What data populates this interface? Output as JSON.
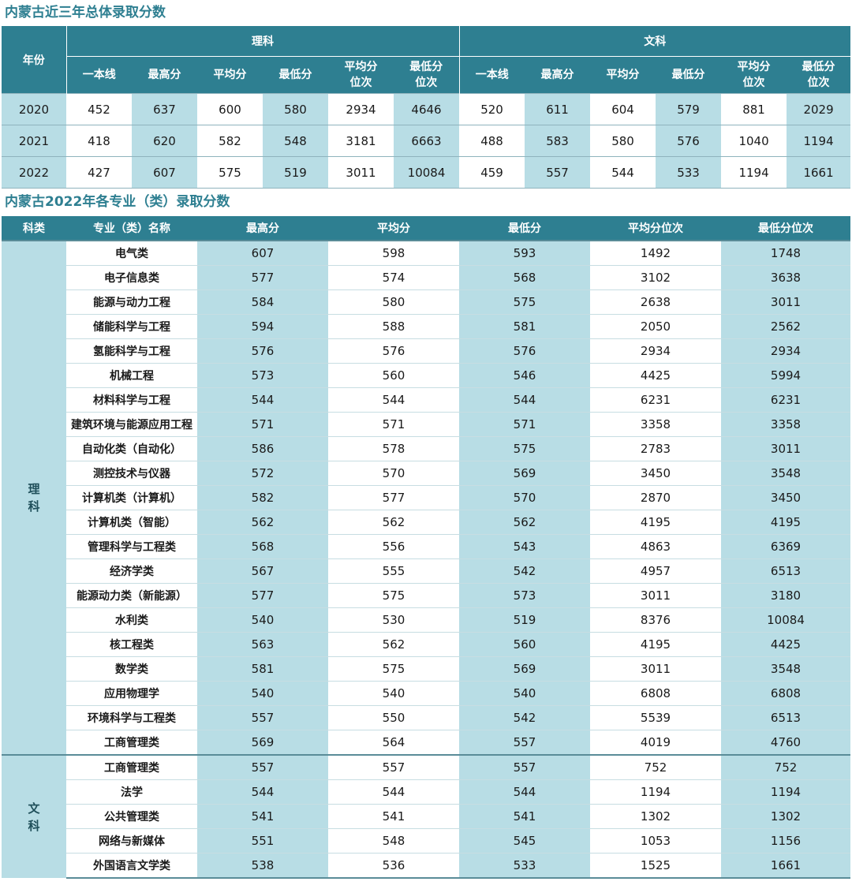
{
  "table1": {
    "title": "内蒙古近三年总体录取分数",
    "year_header": "年份",
    "groups": [
      "理科",
      "文科"
    ],
    "sub_headers": [
      "一本线",
      "最高分",
      "平均分",
      "最低分",
      "平均分\n位次",
      "最低分\n位次"
    ],
    "rows": [
      {
        "year": "2020",
        "science": [
          "452",
          "637",
          "600",
          "580",
          "2934",
          "4646"
        ],
        "arts": [
          "520",
          "611",
          "604",
          "579",
          "881",
          "2029"
        ]
      },
      {
        "year": "2021",
        "science": [
          "418",
          "620",
          "582",
          "548",
          "3181",
          "6663"
        ],
        "arts": [
          "488",
          "583",
          "580",
          "576",
          "1040",
          "1194"
        ]
      },
      {
        "year": "2022",
        "science": [
          "427",
          "607",
          "575",
          "519",
          "3011",
          "10084"
        ],
        "arts": [
          "459",
          "557",
          "544",
          "533",
          "1194",
          "1661"
        ]
      }
    ]
  },
  "table2": {
    "title": "内蒙古2022年各专业（类）录取分数",
    "headers": [
      "科类",
      "专业（类）名称",
      "最高分",
      "平均分",
      "最低分",
      "平均分位次",
      "最低分位次"
    ],
    "sections": [
      {
        "category": [
          "理",
          "科"
        ],
        "rows": [
          [
            "电气类",
            "607",
            "598",
            "593",
            "1492",
            "1748"
          ],
          [
            "电子信息类",
            "577",
            "574",
            "568",
            "3102",
            "3638"
          ],
          [
            "能源与动力工程",
            "584",
            "580",
            "575",
            "2638",
            "3011"
          ],
          [
            "储能科学与工程",
            "594",
            "588",
            "581",
            "2050",
            "2562"
          ],
          [
            "氢能科学与工程",
            "576",
            "576",
            "576",
            "2934",
            "2934"
          ],
          [
            "机械工程",
            "573",
            "560",
            "546",
            "4425",
            "5994"
          ],
          [
            "材料科学与工程",
            "544",
            "544",
            "544",
            "6231",
            "6231"
          ],
          [
            "建筑环境与能源应用工程",
            "571",
            "571",
            "571",
            "3358",
            "3358"
          ],
          [
            "自动化类（自动化）",
            "586",
            "578",
            "575",
            "2783",
            "3011"
          ],
          [
            "测控技术与仪器",
            "572",
            "570",
            "569",
            "3450",
            "3548"
          ],
          [
            "计算机类（计算机）",
            "582",
            "577",
            "570",
            "2870",
            "3450"
          ],
          [
            "计算机类（智能）",
            "562",
            "562",
            "562",
            "4195",
            "4195"
          ],
          [
            "管理科学与工程类",
            "568",
            "556",
            "543",
            "4863",
            "6369"
          ],
          [
            "经济学类",
            "567",
            "555",
            "542",
            "4957",
            "6513"
          ],
          [
            "能源动力类（新能源）",
            "577",
            "575",
            "573",
            "3011",
            "3180"
          ],
          [
            "水利类",
            "540",
            "530",
            "519",
            "8376",
            "10084"
          ],
          [
            "核工程类",
            "563",
            "562",
            "560",
            "4195",
            "4425"
          ],
          [
            "数学类",
            "581",
            "575",
            "569",
            "3011",
            "3548"
          ],
          [
            "应用物理学",
            "540",
            "540",
            "540",
            "6808",
            "6808"
          ],
          [
            "环境科学与工程类",
            "557",
            "550",
            "542",
            "5539",
            "6513"
          ],
          [
            "工商管理类",
            "569",
            "564",
            "557",
            "4019",
            "4760"
          ]
        ]
      },
      {
        "category": [
          "文",
          "科"
        ],
        "rows": [
          [
            "工商管理类",
            "557",
            "557",
            "557",
            "752",
            "752"
          ],
          [
            "法学",
            "544",
            "544",
            "544",
            "1194",
            "1194"
          ],
          [
            "公共管理类",
            "541",
            "541",
            "541",
            "1302",
            "1302"
          ],
          [
            "网络与新媒体",
            "551",
            "548",
            "545",
            "1053",
            "1156"
          ],
          [
            "外国语言文学类",
            "538",
            "536",
            "533",
            "1525",
            "1661"
          ]
        ]
      }
    ]
  },
  "colors": {
    "header_bg": "#2e7f91",
    "shade": "#b8dde5",
    "title": "#2e7f91"
  }
}
